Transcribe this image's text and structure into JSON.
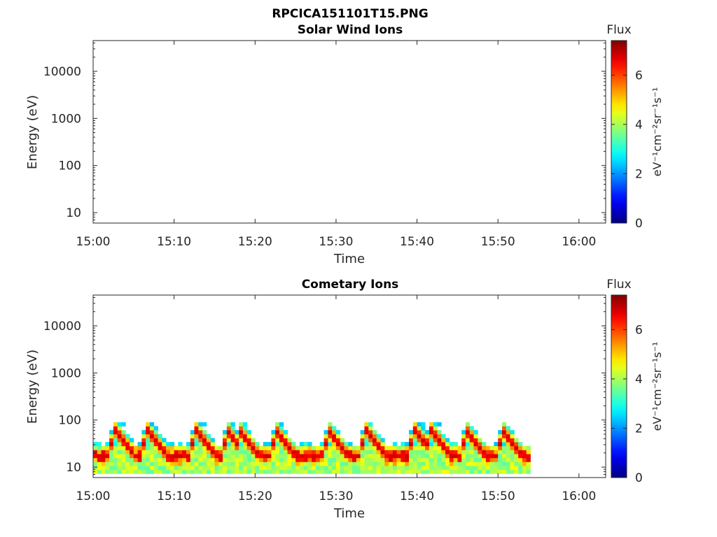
{
  "figure": {
    "filename": "RPCICA151101T15.PNG"
  },
  "chart_data": [
    {
      "type": "heatmap",
      "title": "Solar Wind Ions",
      "xlabel": "Time",
      "ylabel": "Energy (eV)",
      "xticks": [
        "15:00",
        "15:10",
        "15:20",
        "15:30",
        "15:40",
        "15:50",
        "16:00"
      ],
      "xlim_minutes": [
        0,
        63.3
      ],
      "yscale": "log",
      "yticks": [
        "10",
        "100",
        "1000",
        "10000"
      ],
      "ylim": [
        6,
        45000
      ],
      "colorbar": {
        "label": "Flux",
        "units": "eV⁻¹cm⁻²sr⁻¹s⁻¹",
        "ticks": [
          "0",
          "2",
          "4",
          "6"
        ],
        "range": [
          0,
          7.4
        ],
        "colormap": "jet"
      },
      "bands": []
    },
    {
      "type": "heatmap",
      "title": "Cometary Ions",
      "xlabel": "Time",
      "ylabel": "Energy (eV)",
      "xticks": [
        "15:00",
        "15:10",
        "15:20",
        "15:30",
        "15:40",
        "15:50",
        "16:00"
      ],
      "xlim_minutes": [
        0,
        63.3
      ],
      "yscale": "log",
      "yticks": [
        "10",
        "100",
        "1000",
        "10000"
      ],
      "ylim": [
        6,
        45000
      ],
      "colorbar": {
        "label": "Flux",
        "units": "eV⁻¹cm⁻²sr⁻¹s⁻¹",
        "ticks": [
          "0",
          "2",
          "4",
          "6"
        ],
        "range": [
          0,
          7.4
        ],
        "colormap": "jet"
      },
      "data_time_range_minutes": [
        0,
        53.8
      ],
      "background_energy_range_eV": [
        7,
        30
      ],
      "band_peak_energy_eV": 17,
      "band_peak_flux": 6.8,
      "spike_times_minutes": [
        2.5,
        6.5,
        12.5,
        16.3,
        17.8,
        22.3,
        28.8,
        33.5,
        39.5,
        41.5,
        45.8,
        50.3
      ],
      "spike_peak_energy_eV": 60
    }
  ]
}
